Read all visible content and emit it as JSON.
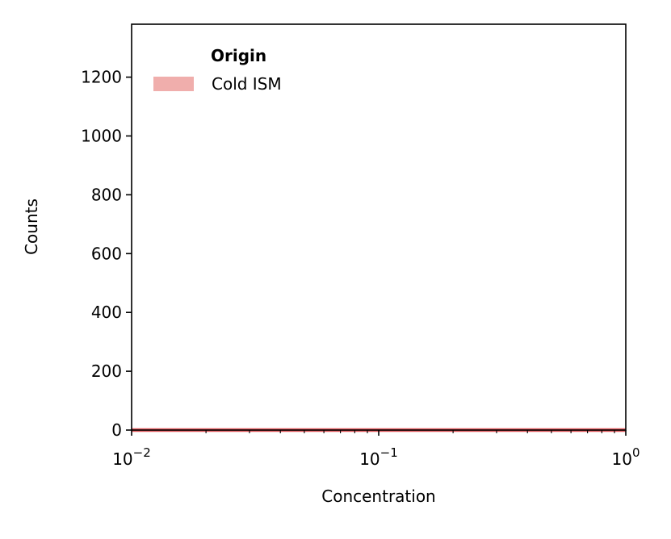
{
  "chart_data": {
    "type": "histogram",
    "xlabel": "Concentration",
    "ylabel": "Counts",
    "xscale": "log",
    "xlim": [
      0.01,
      1.0
    ],
    "ylim": [
      0,
      1380
    ],
    "y_ticks": [
      0,
      200,
      400,
      600,
      800,
      1000,
      1200
    ],
    "y_tick_labels": [
      "0",
      "200",
      "400",
      "600",
      "800",
      "1000",
      "1200"
    ],
    "x_ticks": [
      0.01,
      0.1,
      1.0
    ],
    "x_tick_labels": [
      {
        "base": "10",
        "exp": "−2"
      },
      {
        "base": "10",
        "exp": "−1"
      },
      {
        "base": "10",
        "exp": "0"
      }
    ],
    "legend": {
      "title": "Origin",
      "position": "upper-left"
    },
    "bins": {
      "log_min": -2.0,
      "log_max": 0.0,
      "count": 60
    },
    "series": [
      {
        "name": "Cold ISM",
        "fill": "#e8827f",
        "stroke": "#e05a5e",
        "values": [
          0,
          0,
          0,
          0,
          0,
          0,
          0,
          0,
          0,
          0,
          0,
          0,
          0,
          0,
          0,
          0,
          0,
          0,
          0,
          0,
          0,
          0,
          0,
          0,
          0,
          0,
          0,
          0,
          0,
          0,
          0,
          0,
          0,
          0,
          0,
          0,
          0,
          0,
          0,
          0,
          0,
          0,
          0,
          0,
          0,
          0,
          0,
          0,
          0,
          0,
          0,
          0,
          0,
          0,
          0,
          0,
          0,
          0,
          0,
          0
        ]
      }
    ]
  }
}
